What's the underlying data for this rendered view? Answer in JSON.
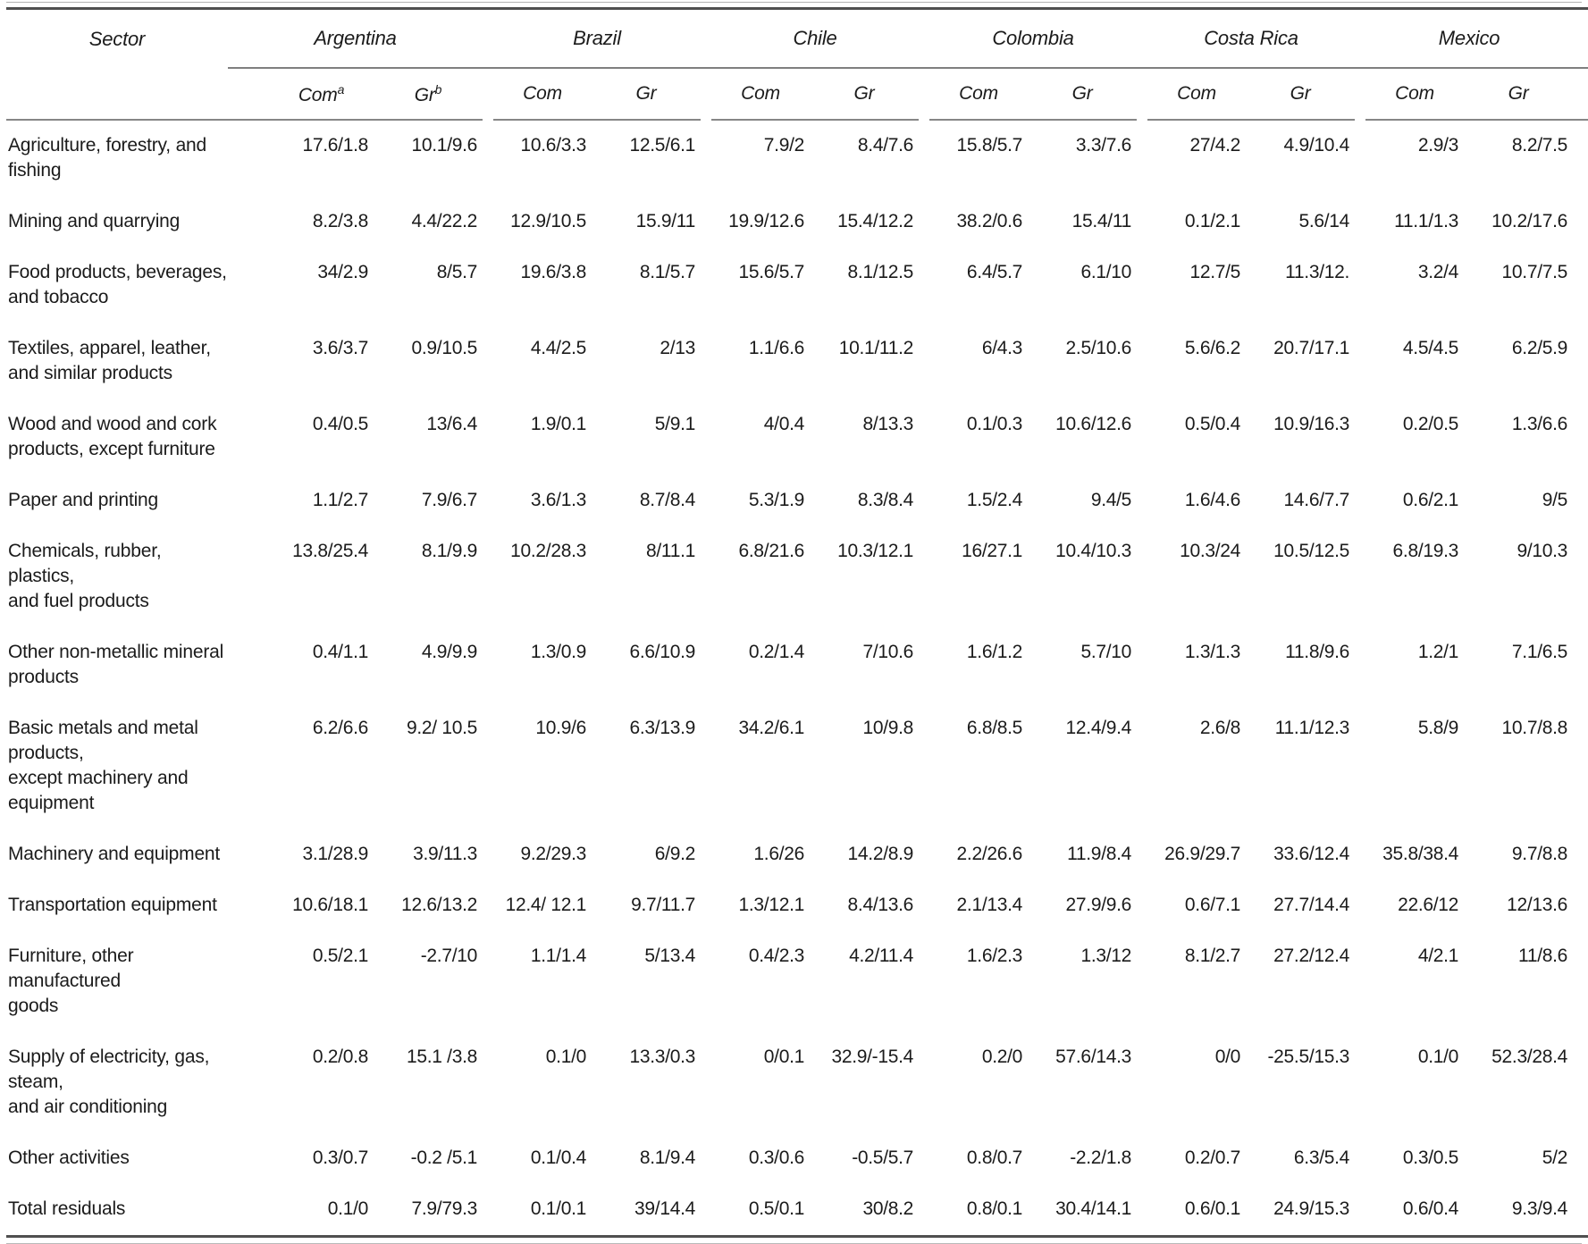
{
  "table": {
    "sector_header": "Sector",
    "com_label": "Com",
    "gr_label": "Gr",
    "com_superscript": "a",
    "gr_superscript": "b",
    "countries": [
      "Argentina",
      "Brazil",
      "Chile",
      "Colombia",
      "Costa Rica",
      "Mexico"
    ],
    "rows": [
      {
        "sector": "Agriculture, forestry, and fishing",
        "values": [
          "17.6/1.8",
          "10.1/9.6",
          "10.6/3.3",
          "12.5/6.1",
          "7.9/2",
          "8.4/7.6",
          "15.8/5.7",
          "3.3/7.6",
          "27/4.2",
          "4.9/10.4",
          "2.9/3",
          "8.2/7.5"
        ]
      },
      {
        "sector": "Mining and quarrying",
        "values": [
          "8.2/3.8",
          "4.4/22.2",
          "12.9/10.5",
          "15.9/11",
          "19.9/12.6",
          "15.4/12.2",
          "38.2/0.6",
          "15.4/11",
          "0.1/2.1",
          "5.6/14",
          "11.1/1.3",
          "10.2/17.6"
        ]
      },
      {
        "sector": "Food products, beverages,\nand tobacco",
        "values": [
          "34/2.9",
          "8/5.7",
          "19.6/3.8",
          "8.1/5.7",
          "15.6/5.7",
          "8.1/12.5",
          "6.4/5.7",
          "6.1/10",
          "12.7/5",
          "11.3/12.",
          "3.2/4",
          "10.7/7.5"
        ]
      },
      {
        "sector": "Textiles, apparel, leather,\nand similar products",
        "values": [
          "3.6/3.7",
          "0.9/10.5",
          "4.4/2.5",
          "2/13",
          "1.1/6.6",
          "10.1/11.2",
          "6/4.3",
          "2.5/10.6",
          "5.6/6.2",
          "20.7/17.1",
          "4.5/4.5",
          "6.2/5.9"
        ]
      },
      {
        "sector": "Wood and wood and cork\nproducts, except furniture",
        "values": [
          "0.4/0.5",
          "13/6.4",
          "1.9/0.1",
          "5/9.1",
          "4/0.4",
          "8/13.3",
          "0.1/0.3",
          "10.6/12.6",
          "0.5/0.4",
          "10.9/16.3",
          "0.2/0.5",
          "1.3/6.6"
        ]
      },
      {
        "sector": "Paper and printing",
        "values": [
          "1.1/2.7",
          "7.9/6.7",
          "3.6/1.3",
          "8.7/8.4",
          "5.3/1.9",
          "8.3/8.4",
          "1.5/2.4",
          "9.4/5",
          "1.6/4.6",
          "14.6/7.7",
          "0.6/2.1",
          "9/5"
        ]
      },
      {
        "sector": "Chemicals, rubber, plastics,\nand fuel products",
        "values": [
          "13.8/25.4",
          "8.1/9.9",
          "10.2/28.3",
          "8/11.1",
          "6.8/21.6",
          "10.3/12.1",
          "16/27.1",
          "10.4/10.3",
          "10.3/24",
          "10.5/12.5",
          "6.8/19.3",
          "9/10.3"
        ]
      },
      {
        "sector": "Other non-metallic mineral\nproducts",
        "values": [
          "0.4/1.1",
          "4.9/9.9",
          "1.3/0.9",
          "6.6/10.9",
          "0.2/1.4",
          "7/10.6",
          "1.6/1.2",
          "5.7/10",
          "1.3/1.3",
          "11.8/9.6",
          "1.2/1",
          "7.1/6.5"
        ]
      },
      {
        "sector": "Basic metals and metal products,\nexcept machinery and equipment",
        "values": [
          "6.2/6.6",
          "9.2/ 10.5",
          "10.9/6",
          "6.3/13.9",
          "34.2/6.1",
          "10/9.8",
          "6.8/8.5",
          "12.4/9.4",
          "2.6/8",
          "11.1/12.3",
          "5.8/9",
          "10.7/8.8"
        ]
      },
      {
        "sector": "Machinery and equipment",
        "values": [
          "3.1/28.9",
          "3.9/11.3",
          "9.2/29.3",
          "6/9.2",
          "1.6/26",
          "14.2/8.9",
          "2.2/26.6",
          "11.9/8.4",
          "26.9/29.7",
          "33.6/12.4",
          "35.8/38.4",
          "9.7/8.8"
        ]
      },
      {
        "sector": "Transportation equipment",
        "values": [
          "10.6/18.1",
          "12.6/13.2",
          "12.4/ 12.1",
          "9.7/11.7",
          "1.3/12.1",
          "8.4/13.6",
          "2.1/13.4",
          "27.9/9.6",
          "0.6/7.1",
          "27.7/14.4",
          "22.6/12",
          "12/13.6"
        ]
      },
      {
        "sector": "Furniture, other manufactured\ngoods",
        "values": [
          "0.5/2.1",
          "-2.7/10",
          "1.1/1.4",
          "5/13.4",
          "0.4/2.3",
          "4.2/11.4",
          "1.6/2.3",
          "1.3/12",
          "8.1/2.7",
          "27.2/12.4",
          "4/2.1",
          "11/8.6"
        ]
      },
      {
        "sector": "Supply of electricity, gas, steam,\nand air conditioning",
        "values": [
          "0.2/0.8",
          "15.1 /3.8",
          "0.1/0",
          "13.3/0.3",
          "0/0.1",
          "32.9/-15.4",
          "0.2/0",
          "57.6/14.3",
          "0/0",
          "-25.5/15.3",
          "0.1/0",
          "52.3/28.4"
        ]
      },
      {
        "sector": "Other activities",
        "values": [
          "0.3/0.7",
          "-0.2 /5.1",
          "0.1/0.4",
          "8.1/9.4",
          "0.3/0.6",
          "-0.5/5.7",
          "0.8/0.7",
          "-2.2/1.8",
          "0.2/0.7",
          "6.3/5.4",
          "0.3/0.5",
          "5/2"
        ]
      },
      {
        "sector": "Total residuals",
        "values": [
          "0.1/0",
          "7.9/79.3",
          "0.1/0.1",
          "39/14.4",
          "0.5/0.1",
          "30/8.2",
          "0.8/0.1",
          "30.4/14.1",
          "0.6/0.1",
          "24.9/15.3",
          "0.6/0.4",
          "9.3/9.4"
        ]
      }
    ]
  }
}
